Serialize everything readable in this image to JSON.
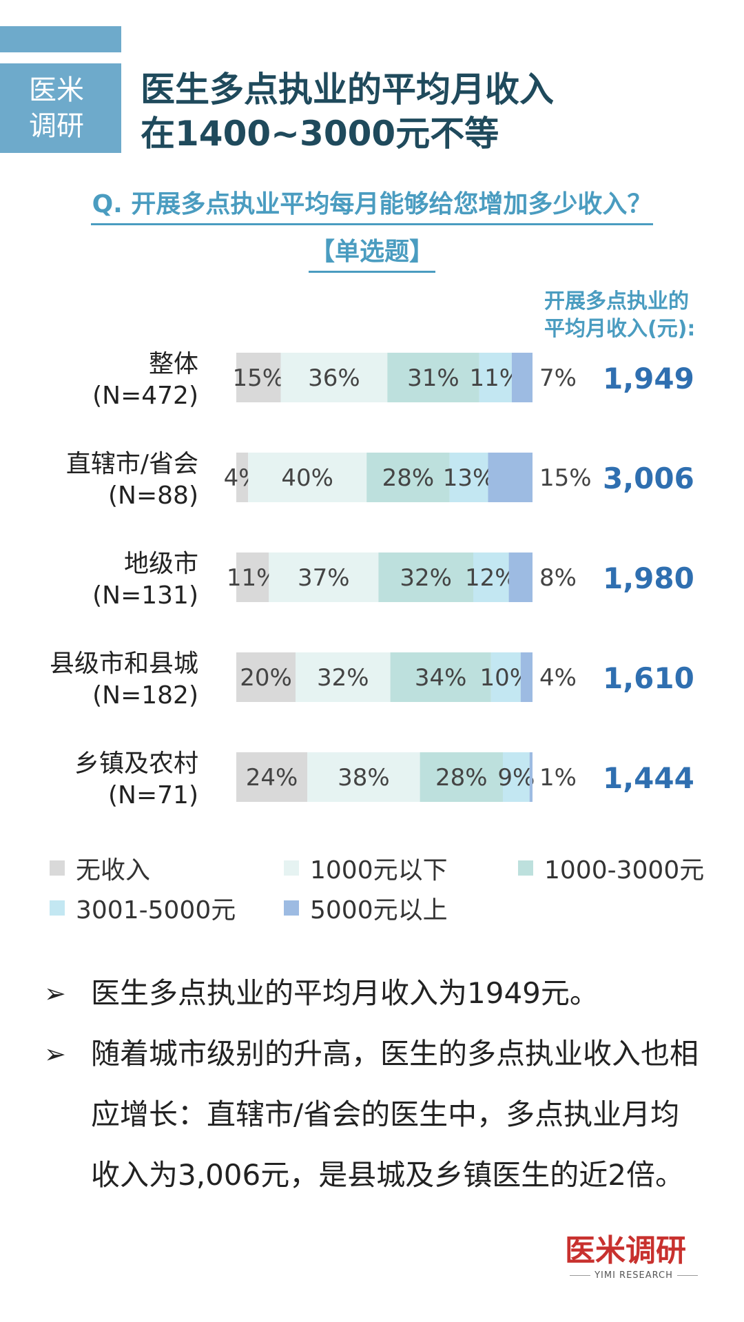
{
  "brand": {
    "line1": "医米",
    "line2": "调研"
  },
  "title": {
    "line1": "医生多点执业的平均月收入",
    "line2": "在1400~3000元不等"
  },
  "question": {
    "line1": "Q. 开展多点执业平均每月能够给您增加多少收入？",
    "line2": "【单选题】"
  },
  "income_header": {
    "line1": "开展多点执业的",
    "line2": "平均月收入(元):"
  },
  "chart_data": {
    "type": "bar",
    "orientation": "horizontal",
    "stacked": true,
    "categories": [
      {
        "name": "整体",
        "n": "(N=472)",
        "income": "1,949"
      },
      {
        "name": "直辖市/省会",
        "n": "(N=88)",
        "income": "3,006"
      },
      {
        "name": "地级市",
        "n": "(N=131)",
        "income": "1,980"
      },
      {
        "name": "县级市和县城",
        "n": "(N=182)",
        "income": "1,610"
      },
      {
        "name": "乡镇及农村",
        "n": "(N=71)",
        "income": "1,444"
      }
    ],
    "series": [
      {
        "name": "无收入",
        "color": "#d9d9d9",
        "values": [
          15,
          4,
          11,
          20,
          24
        ]
      },
      {
        "name": "1000元以下",
        "color": "#e6f3f2",
        "values": [
          36,
          40,
          37,
          32,
          38
        ]
      },
      {
        "name": "1000-3000元",
        "color": "#bde0dd",
        "values": [
          31,
          28,
          32,
          34,
          28
        ]
      },
      {
        "name": "3001-5000元",
        "color": "#c3e7f2",
        "values": [
          11,
          13,
          12,
          10,
          9
        ]
      },
      {
        "name": "5000元以上",
        "color": "#9dbbe2",
        "values": [
          7,
          15,
          8,
          4,
          1
        ]
      }
    ],
    "unit": "%"
  },
  "bullets": [
    "医生多点执业的平均月收入为1949元。",
    "随着城市级别的升高，医生的多点执业收入也相应增长：直辖市/省会的医生中，多点执业月均收入为3,006元，是县城及乡镇医生的近2倍。"
  ],
  "bullet_symbol": "➢",
  "footer": {
    "logo": "医米调研",
    "sub": "YIMI RESEARCH"
  }
}
